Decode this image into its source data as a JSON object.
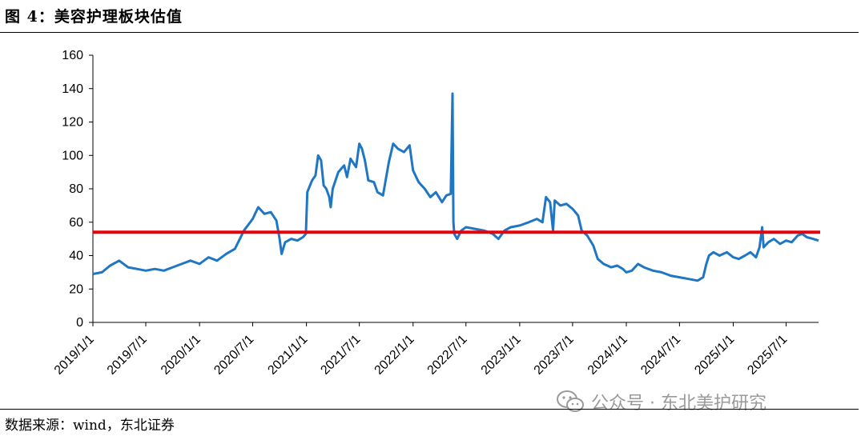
{
  "title": "图 4：美容护理板块估值",
  "source": "数据来源：wind，东北证券",
  "watermark": {
    "text": "公众号 · 东北美护研究",
    "icon": "wechat-icon"
  },
  "chart_data": {
    "type": "line",
    "title": "",
    "xlabel": "",
    "ylabel": "",
    "ylim": [
      0,
      160
    ],
    "y_ticks": [
      0,
      20,
      40,
      60,
      80,
      100,
      120,
      140,
      160
    ],
    "x_range": [
      "2019-01-01",
      "2025-10-20"
    ],
    "x_ticks": [
      "2019/1/1",
      "2019/7/1",
      "2020/1/1",
      "2020/7/1",
      "2021/1/1",
      "2021/7/1",
      "2022/1/1",
      "2022/7/1",
      "2023/1/1",
      "2023/7/1",
      "2024/1/1",
      "2024/7/1",
      "2025/1/1",
      "2025/7/1"
    ],
    "grid": false,
    "legend": "none",
    "reference_line": {
      "value": 54,
      "color": "#e8000b"
    },
    "series": [
      {
        "color": "#1f77c4",
        "points": [
          [
            "2019-01-01",
            29
          ],
          [
            "2019-02-01",
            30
          ],
          [
            "2019-03-01",
            34
          ],
          [
            "2019-04-01",
            37
          ],
          [
            "2019-05-01",
            33
          ],
          [
            "2019-06-01",
            32
          ],
          [
            "2019-07-01",
            31
          ],
          [
            "2019-08-01",
            32
          ],
          [
            "2019-09-01",
            31
          ],
          [
            "2019-10-01",
            33
          ],
          [
            "2019-11-01",
            35
          ],
          [
            "2019-12-01",
            37
          ],
          [
            "2020-01-01",
            35
          ],
          [
            "2020-02-01",
            39
          ],
          [
            "2020-03-01",
            37
          ],
          [
            "2020-04-01",
            41
          ],
          [
            "2020-05-01",
            44
          ],
          [
            "2020-06-01",
            55
          ],
          [
            "2020-07-01",
            62
          ],
          [
            "2020-07-20",
            69
          ],
          [
            "2020-08-10",
            65
          ],
          [
            "2020-09-01",
            66
          ],
          [
            "2020-09-20",
            61
          ],
          [
            "2020-10-01",
            50
          ],
          [
            "2020-10-08",
            41
          ],
          [
            "2020-10-20",
            48
          ],
          [
            "2020-11-10",
            50
          ],
          [
            "2020-12-01",
            49
          ],
          [
            "2020-12-20",
            51
          ],
          [
            "2020-12-30",
            53
          ],
          [
            "2021-01-04",
            78
          ],
          [
            "2021-01-20",
            85
          ],
          [
            "2021-02-01",
            88
          ],
          [
            "2021-02-10",
            100
          ],
          [
            "2021-02-20",
            97
          ],
          [
            "2021-03-01",
            82
          ],
          [
            "2021-03-10",
            80
          ],
          [
            "2021-03-20",
            75
          ],
          [
            "2021-03-25",
            69
          ],
          [
            "2021-04-01",
            80
          ],
          [
            "2021-04-20",
            90
          ],
          [
            "2021-05-10",
            94
          ],
          [
            "2021-05-20",
            87
          ],
          [
            "2021-06-01",
            98
          ],
          [
            "2021-06-20",
            93
          ],
          [
            "2021-07-01",
            107
          ],
          [
            "2021-07-10",
            104
          ],
          [
            "2021-07-20",
            97
          ],
          [
            "2021-08-01",
            85
          ],
          [
            "2021-08-20",
            84
          ],
          [
            "2021-09-01",
            78
          ],
          [
            "2021-09-20",
            76
          ],
          [
            "2021-10-10",
            96
          ],
          [
            "2021-10-25",
            107
          ],
          [
            "2021-11-10",
            104
          ],
          [
            "2021-12-01",
            102
          ],
          [
            "2021-12-20",
            106
          ],
          [
            "2022-01-01",
            91
          ],
          [
            "2022-01-20",
            84
          ],
          [
            "2022-02-10",
            80
          ],
          [
            "2022-03-01",
            75
          ],
          [
            "2022-03-20",
            78
          ],
          [
            "2022-04-10",
            72
          ],
          [
            "2022-04-25",
            76
          ],
          [
            "2022-05-10",
            77
          ],
          [
            "2022-05-16",
            137
          ],
          [
            "2022-05-19",
            60
          ],
          [
            "2022-05-22",
            53
          ],
          [
            "2022-06-01",
            50
          ],
          [
            "2022-06-15",
            55
          ],
          [
            "2022-07-01",
            57
          ],
          [
            "2022-08-01",
            56
          ],
          [
            "2022-09-01",
            55
          ],
          [
            "2022-10-01",
            53
          ],
          [
            "2022-10-20",
            50
          ],
          [
            "2022-11-10",
            55
          ],
          [
            "2022-12-01",
            57
          ],
          [
            "2023-01-01",
            58
          ],
          [
            "2023-02-01",
            60
          ],
          [
            "2023-03-01",
            62
          ],
          [
            "2023-03-20",
            60
          ],
          [
            "2023-04-01",
            75
          ],
          [
            "2023-04-15",
            72
          ],
          [
            "2023-04-25",
            55
          ],
          [
            "2023-05-01",
            73
          ],
          [
            "2023-05-20",
            70
          ],
          [
            "2023-06-10",
            71
          ],
          [
            "2023-07-01",
            68
          ],
          [
            "2023-07-20",
            64
          ],
          [
            "2023-08-01",
            55
          ],
          [
            "2023-08-20",
            52
          ],
          [
            "2023-09-10",
            46
          ],
          [
            "2023-09-25",
            38
          ],
          [
            "2023-10-15",
            35
          ],
          [
            "2023-11-10",
            33
          ],
          [
            "2023-12-01",
            34
          ],
          [
            "2023-12-20",
            32
          ],
          [
            "2024-01-01",
            30
          ],
          [
            "2024-01-20",
            31
          ],
          [
            "2024-02-10",
            35
          ],
          [
            "2024-03-01",
            33
          ],
          [
            "2024-04-01",
            31
          ],
          [
            "2024-05-01",
            30
          ],
          [
            "2024-06-01",
            28
          ],
          [
            "2024-07-01",
            27
          ],
          [
            "2024-08-01",
            26
          ],
          [
            "2024-09-01",
            25
          ],
          [
            "2024-09-20",
            27
          ],
          [
            "2024-10-01",
            35
          ],
          [
            "2024-10-10",
            40
          ],
          [
            "2024-10-25",
            42
          ],
          [
            "2024-11-15",
            40
          ],
          [
            "2024-12-10",
            42
          ],
          [
            "2025-01-01",
            39
          ],
          [
            "2025-01-20",
            38
          ],
          [
            "2025-02-10",
            40
          ],
          [
            "2025-03-01",
            42
          ],
          [
            "2025-03-20",
            39
          ],
          [
            "2025-04-01",
            45
          ],
          [
            "2025-04-10",
            57
          ],
          [
            "2025-04-15",
            45
          ],
          [
            "2025-05-01",
            48
          ],
          [
            "2025-05-20",
            50
          ],
          [
            "2025-06-10",
            47
          ],
          [
            "2025-07-01",
            49
          ],
          [
            "2025-07-20",
            48
          ],
          [
            "2025-08-10",
            52
          ],
          [
            "2025-08-25",
            53
          ],
          [
            "2025-09-10",
            51
          ],
          [
            "2025-10-01",
            50
          ],
          [
            "2025-10-20",
            49
          ]
        ]
      }
    ]
  }
}
